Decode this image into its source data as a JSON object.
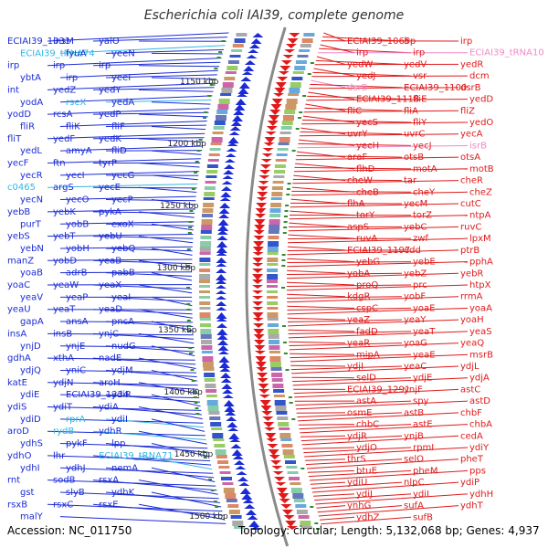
{
  "title": "Escherichia coli IAI39, complete genome",
  "accession_text": "Accession: NC_011750",
  "topology_text": "Topology: circular; Length: 5,132,068 bp; Genes: 4,937",
  "colors": {
    "forward": "#1b2bd6",
    "reverse": "#e01a1a",
    "forward_rna": "#33b6e6",
    "reverse_rna": "#f08ac8",
    "backbone": "#8a8a8a",
    "tick_green": "#2f8f2f"
  },
  "scale_labels": [
    "1150 kbp",
    "1200 kbp",
    "1250 kbp",
    "1300 kbp",
    "1350 kbp",
    "1400 kbp",
    "1450 kbp",
    "1500 kbp"
  ],
  "forward_labels": [
    {
      "text": "ECIAI39_1031",
      "rna": false
    },
    {
      "text": "insM",
      "rna": false
    },
    {
      "text": "yaiO",
      "rna": false
    },
    {
      "text": "ECIAI39_tRNA74",
      "rna": true
    },
    {
      "text": "fyuA",
      "rna": false
    },
    {
      "text": "yeeN",
      "rna": false
    },
    {
      "text": "irp",
      "rna": false
    },
    {
      "text": "irp",
      "rna": false
    },
    {
      "text": "irp",
      "rna": false
    },
    {
      "text": "ybtA",
      "rna": false
    },
    {
      "text": "irp",
      "rna": false
    },
    {
      "text": "yeeI",
      "rna": false
    },
    {
      "text": "int",
      "rna": false
    },
    {
      "text": "yedZ",
      "rna": false
    },
    {
      "text": "yedY",
      "rna": false
    },
    {
      "text": "yodA",
      "rna": false
    },
    {
      "text": "rseX",
      "rna": true
    },
    {
      "text": "yedA",
      "rna": false
    },
    {
      "text": "yodD",
      "rna": false
    },
    {
      "text": "rcsA",
      "rna": false
    },
    {
      "text": "yedP",
      "rna": false
    },
    {
      "text": "fliR",
      "rna": false
    },
    {
      "text": "fliK",
      "rna": false
    },
    {
      "text": "fliF",
      "rna": false
    },
    {
      "text": "fliT",
      "rna": false
    },
    {
      "text": "yedF",
      "rna": false
    },
    {
      "text": "yedK",
      "rna": false
    },
    {
      "text": "yedL",
      "rna": false
    },
    {
      "text": "amyA",
      "rna": false
    },
    {
      "text": "fliD",
      "rna": false
    },
    {
      "text": "yecF",
      "rna": false
    },
    {
      "text": "ftn",
      "rna": false
    },
    {
      "text": "tyrP",
      "rna": false
    },
    {
      "text": "yecR",
      "rna": false
    },
    {
      "text": "yecI",
      "rna": false
    },
    {
      "text": "yecG",
      "rna": false
    },
    {
      "text": "c0465",
      "rna": true
    },
    {
      "text": "argS",
      "rna": false
    },
    {
      "text": "yecE",
      "rna": false
    },
    {
      "text": "yecN",
      "rna": false
    },
    {
      "text": "yecO",
      "rna": false
    },
    {
      "text": "yecP",
      "rna": false
    },
    {
      "text": "yebB",
      "rna": false
    },
    {
      "text": "yebK",
      "rna": false
    },
    {
      "text": "pykA",
      "rna": false
    },
    {
      "text": "purT",
      "rna": false
    },
    {
      "text": "yobB",
      "rna": false
    },
    {
      "text": "exoX",
      "rna": false
    },
    {
      "text": "yebS",
      "rna": false
    },
    {
      "text": "yebT",
      "rna": false
    },
    {
      "text": "yebU",
      "rna": false
    },
    {
      "text": "yebN",
      "rna": false
    },
    {
      "text": "yobH",
      "rna": false
    },
    {
      "text": "yebQ",
      "rna": false
    },
    {
      "text": "manZ",
      "rna": false
    },
    {
      "text": "yobD",
      "rna": false
    },
    {
      "text": "yeaB",
      "rna": false
    },
    {
      "text": "yoaB",
      "rna": false
    },
    {
      "text": "adrB",
      "rna": false
    },
    {
      "text": "pabB",
      "rna": false
    },
    {
      "text": "yoaC",
      "rna": false
    },
    {
      "text": "yeaW",
      "rna": false
    },
    {
      "text": "yeaX",
      "rna": false
    },
    {
      "text": "yeaV",
      "rna": false
    },
    {
      "text": "yeaP",
      "rna": false
    },
    {
      "text": "yeaI",
      "rna": false
    },
    {
      "text": "yeaU",
      "rna": false
    },
    {
      "text": "yeaT",
      "rna": false
    },
    {
      "text": "yeaD",
      "rna": false
    },
    {
      "text": "gapA",
      "rna": false
    },
    {
      "text": "ansA",
      "rna": false
    },
    {
      "text": "pncA",
      "rna": false
    },
    {
      "text": "insA",
      "rna": false
    },
    {
      "text": "insB",
      "rna": false
    },
    {
      "text": "ynjC",
      "rna": false
    },
    {
      "text": "ynjD",
      "rna": false
    },
    {
      "text": "ynjE",
      "rna": false
    },
    {
      "text": "nudG",
      "rna": false
    },
    {
      "text": "gdhA",
      "rna": false
    },
    {
      "text": "xthA",
      "rna": false
    },
    {
      "text": "nadE",
      "rna": false
    },
    {
      "text": "ydjQ",
      "rna": false
    },
    {
      "text": "yniC",
      "rna": false
    },
    {
      "text": "ydjM",
      "rna": false
    },
    {
      "text": "katE",
      "rna": false
    },
    {
      "text": "ydjN",
      "rna": false
    },
    {
      "text": "aroH",
      "rna": false
    },
    {
      "text": "ydiE",
      "rna": false
    },
    {
      "text": "ECIAI39_1334",
      "rna": false
    },
    {
      "text": "ydiR",
      "rna": false
    },
    {
      "text": "ydiS",
      "rna": false
    },
    {
      "text": "ydiT",
      "rna": false
    },
    {
      "text": "ydiA",
      "rna": false
    },
    {
      "text": "ydiD",
      "rna": false
    },
    {
      "text": "rprA",
      "rna": true
    },
    {
      "text": "ydiI",
      "rna": false
    },
    {
      "text": "aroD",
      "rna": false
    },
    {
      "text": "rydB",
      "rna": true
    },
    {
      "text": "ydhR",
      "rna": false
    },
    {
      "text": "ydhS",
      "rna": false
    },
    {
      "text": "pykF",
      "rna": false
    },
    {
      "text": "lpp",
      "rna": false
    },
    {
      "text": "ydhO",
      "rna": false
    },
    {
      "text": "lhr",
      "rna": false
    },
    {
      "text": "ECIAI39_tRNA71",
      "rna": true
    },
    {
      "text": "ydhI",
      "rna": false
    },
    {
      "text": "ydhJ",
      "rna": false
    },
    {
      "text": "nemA",
      "rna": false
    },
    {
      "text": "rnt",
      "rna": false
    },
    {
      "text": "sodB",
      "rna": false
    },
    {
      "text": "rsxA",
      "rna": false
    },
    {
      "text": "gst",
      "rna": false
    },
    {
      "text": "slyB",
      "rna": false
    },
    {
      "text": "ydhK",
      "rna": false
    },
    {
      "text": "rsxB",
      "rna": false
    },
    {
      "text": "rsxC",
      "rna": false
    },
    {
      "text": "rsxE",
      "rna": false
    },
    {
      "text": "malY",
      "rna": false
    }
  ],
  "reverse_labels": [
    {
      "text": "ECIAI39_1065",
      "rna": false
    },
    {
      "text": "irp",
      "rna": false
    },
    {
      "text": "irp",
      "rna": false
    },
    {
      "text": "irp",
      "rna": false
    },
    {
      "text": "irp",
      "rna": false
    },
    {
      "text": "ECIAI39_tRNA10",
      "rna": true
    },
    {
      "text": "yedW",
      "rna": false
    },
    {
      "text": "yedV",
      "rna": false
    },
    {
      "text": "yedR",
      "rna": false
    },
    {
      "text": "yedJ",
      "rna": false
    },
    {
      "text": "vsr",
      "rna": false
    },
    {
      "text": "dcm",
      "rna": false
    },
    {
      "text": "dsrB",
      "rna": true
    },
    {
      "text": "ECIAI39_1100",
      "rna": false
    },
    {
      "text": "dsrB",
      "rna": false
    },
    {
      "text": "ECIAI39_1118",
      "rna": false
    },
    {
      "text": "fliE",
      "rna": false
    },
    {
      "text": "yedD",
      "rna": false
    },
    {
      "text": "fliC",
      "rna": false
    },
    {
      "text": "fliA",
      "rna": false
    },
    {
      "text": "fliZ",
      "rna": false
    },
    {
      "text": "yecS",
      "rna": false
    },
    {
      "text": "fliY",
      "rna": false
    },
    {
      "text": "yedO",
      "rna": false
    },
    {
      "text": "uvrY",
      "rna": false
    },
    {
      "text": "uvrC",
      "rna": false
    },
    {
      "text": "yecA",
      "rna": false
    },
    {
      "text": "yecH",
      "rna": false
    },
    {
      "text": "yecJ",
      "rna": false
    },
    {
      "text": "isrB",
      "rna": true
    },
    {
      "text": "araF",
      "rna": false
    },
    {
      "text": "otsB",
      "rna": false
    },
    {
      "text": "otsA",
      "rna": false
    },
    {
      "text": "flhD",
      "rna": false
    },
    {
      "text": "motA",
      "rna": false
    },
    {
      "text": "motB",
      "rna": false
    },
    {
      "text": "cheW",
      "rna": false
    },
    {
      "text": "tar",
      "rna": false
    },
    {
      "text": "cheR",
      "rna": false
    },
    {
      "text": "cheB",
      "rna": false
    },
    {
      "text": "cheY",
      "rna": false
    },
    {
      "text": "cheZ",
      "rna": false
    },
    {
      "text": "flhA",
      "rna": false
    },
    {
      "text": "yecM",
      "rna": false
    },
    {
      "text": "cutC",
      "rna": false
    },
    {
      "text": "torY",
      "rna": false
    },
    {
      "text": "torZ",
      "rna": false
    },
    {
      "text": "ntpA",
      "rna": false
    },
    {
      "text": "aspS",
      "rna": false
    },
    {
      "text": "yebC",
      "rna": false
    },
    {
      "text": "ruvC",
      "rna": false
    },
    {
      "text": "ruvA",
      "rna": false
    },
    {
      "text": "zwf",
      "rna": false
    },
    {
      "text": "lpxM",
      "rna": false
    },
    {
      "text": "ECIAI39_1197",
      "rna": false
    },
    {
      "text": "edd",
      "rna": false
    },
    {
      "text": "ptrB",
      "rna": false
    },
    {
      "text": "yebG",
      "rna": false
    },
    {
      "text": "yebE",
      "rna": false
    },
    {
      "text": "pphA",
      "rna": false
    },
    {
      "text": "yobA",
      "rna": false
    },
    {
      "text": "yebZ",
      "rna": false
    },
    {
      "text": "yebR",
      "rna": false
    },
    {
      "text": "proQ",
      "rna": false
    },
    {
      "text": "prc",
      "rna": false
    },
    {
      "text": "htpX",
      "rna": false
    },
    {
      "text": "kdgR",
      "rna": false
    },
    {
      "text": "yobF",
      "rna": false
    },
    {
      "text": "rrmA",
      "rna": false
    },
    {
      "text": "cspC",
      "rna": false
    },
    {
      "text": "yoaE",
      "rna": false
    },
    {
      "text": "yoaA",
      "rna": false
    },
    {
      "text": "yeaZ",
      "rna": false
    },
    {
      "text": "yeaY",
      "rna": false
    },
    {
      "text": "yoaH",
      "rna": false
    },
    {
      "text": "fadD",
      "rna": false
    },
    {
      "text": "yeaT",
      "rna": false
    },
    {
      "text": "yeaS",
      "rna": false
    },
    {
      "text": "yeaR",
      "rna": false
    },
    {
      "text": "yoaG",
      "rna": false
    },
    {
      "text": "yeaQ",
      "rna": false
    },
    {
      "text": "mipA",
      "rna": false
    },
    {
      "text": "yeaE",
      "rna": false
    },
    {
      "text": "msrB",
      "rna": false
    },
    {
      "text": "ydjI",
      "rna": false
    },
    {
      "text": "yeaC",
      "rna": false
    },
    {
      "text": "ydjL",
      "rna": false
    },
    {
      "text": "selD",
      "rna": false
    },
    {
      "text": "ydjE",
      "rna": false
    },
    {
      "text": "ydjA",
      "rna": false
    },
    {
      "text": "ECIAI39_1291",
      "rna": false
    },
    {
      "text": "ynjF",
      "rna": false
    },
    {
      "text": "astC",
      "rna": false
    },
    {
      "text": "astA",
      "rna": false
    },
    {
      "text": "spy",
      "rna": false
    },
    {
      "text": "astD",
      "rna": false
    },
    {
      "text": "osmE",
      "rna": false
    },
    {
      "text": "astB",
      "rna": false
    },
    {
      "text": "chbF",
      "rna": false
    },
    {
      "text": "chbC",
      "rna": false
    },
    {
      "text": "astE",
      "rna": false
    },
    {
      "text": "chbA",
      "rna": false
    },
    {
      "text": "ydjR",
      "rna": false
    },
    {
      "text": "ynjB",
      "rna": false
    },
    {
      "text": "cedA",
      "rna": false
    },
    {
      "text": "ydjO",
      "rna": false
    },
    {
      "text": "rpmI",
      "rna": false
    },
    {
      "text": "ydiY",
      "rna": false
    },
    {
      "text": "thrS",
      "rna": false
    },
    {
      "text": "selO",
      "rna": false
    },
    {
      "text": "pheT",
      "rna": false
    },
    {
      "text": "btuE",
      "rna": false
    },
    {
      "text": "pheM",
      "rna": false
    },
    {
      "text": "pps",
      "rna": false
    },
    {
      "text": "ydiU",
      "rna": false
    },
    {
      "text": "nlpC",
      "rna": false
    },
    {
      "text": "ydiP",
      "rna": false
    },
    {
      "text": "ydiJ",
      "rna": false
    },
    {
      "text": "ydiI",
      "rna": false
    },
    {
      "text": "ydhH",
      "rna": false
    },
    {
      "text": "ynhG",
      "rna": false
    },
    {
      "text": "sufA",
      "rna": false
    },
    {
      "text": "ydhT",
      "rna": false
    },
    {
      "text": "ydhZ",
      "rna": false
    },
    {
      "text": "sufB",
      "rna": false
    }
  ]
}
